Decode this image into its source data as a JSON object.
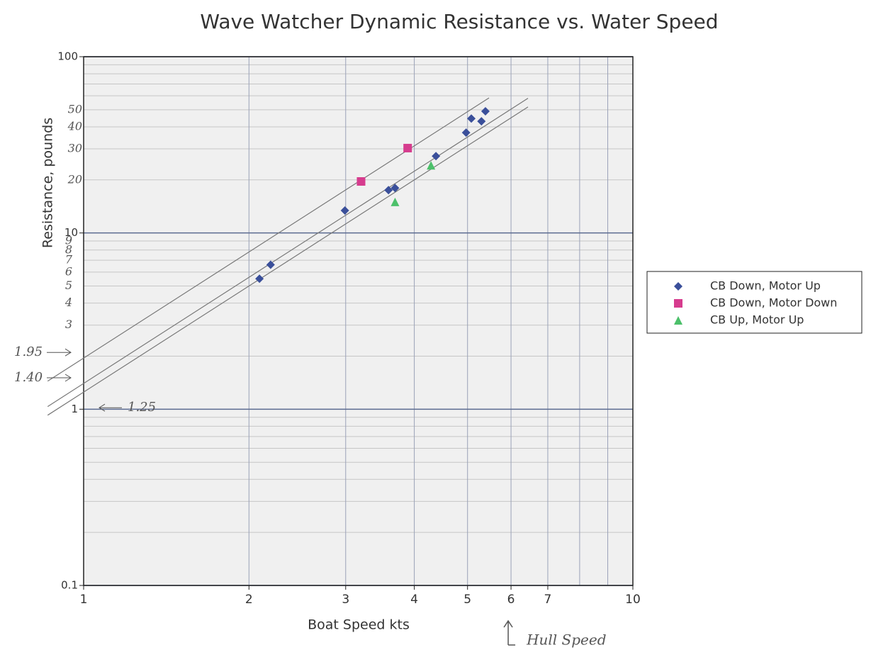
{
  "chart_data": {
    "type": "scatter",
    "title": "Wave Watcher Dynamic Resistance vs. Water Speed",
    "x_label": "Boat Speed kts",
    "y_label": "Resistance, pounds",
    "log_x": true,
    "log_y": true,
    "grid": true,
    "legend": "right",
    "xlim": [
      1,
      10
    ],
    "ylim": [
      0.1,
      100
    ],
    "xticks": [
      1,
      2,
      3,
      4,
      5,
      6,
      7,
      10
    ],
    "yticks": [
      0.1,
      1,
      10,
      100
    ],
    "handwritten_yticks": [
      50,
      40,
      30,
      20,
      9,
      8,
      7,
      6,
      5,
      4,
      3
    ],
    "series": [
      {
        "name": "CB Down, Motor Up",
        "color": "#3a4f9a",
        "marker": "diamond",
        "x": [
          2.09,
          2.19,
          2.99,
          3.59,
          3.69,
          4.38,
          4.97,
          5.08,
          5.3,
          5.39
        ],
        "values": [
          5.5,
          6.6,
          13.4,
          17.5,
          18.0,
          27.3,
          37.1,
          44.6,
          43.0,
          49.0
        ]
      },
      {
        "name": "CB Down, Motor Down",
        "color": "#d63c8e",
        "marker": "square",
        "x": [
          3.2,
          3.89
        ],
        "values": [
          19.6,
          30.3
        ]
      },
      {
        "name": "CB Up, Motor Up",
        "color": "#4cc06a",
        "marker": "triangle",
        "x": [
          3.69,
          4.29
        ],
        "values": [
          15.0,
          24.2
        ]
      }
    ],
    "fit_lines": [
      {
        "value": 1.95,
        "label": "1.95"
      },
      {
        "value": 1.4,
        "label": "1.40"
      },
      {
        "value": 1.25,
        "label": "1.25"
      }
    ],
    "hull_speed": {
      "label": "Hull Speed",
      "value": 6
    }
  }
}
